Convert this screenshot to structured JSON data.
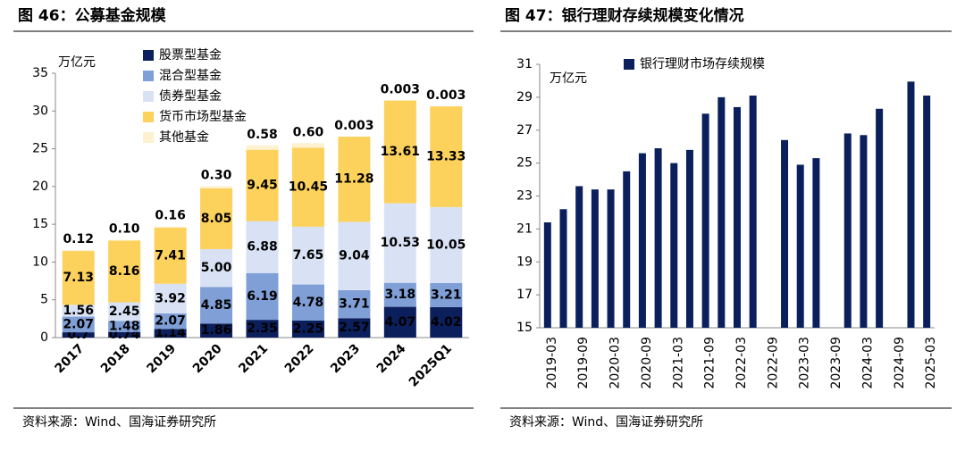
{
  "chart_data": [
    {
      "type": "bar",
      "stacked": true,
      "title": "图 46：公募基金规模",
      "unit": "万亿元",
      "source": "资料来源：Wind、国海证券研究所",
      "categories": [
        "2017",
        "2018",
        "2019",
        "2020",
        "2021",
        "2022",
        "2023",
        "2024",
        "2025Q1"
      ],
      "series": [
        {
          "name": "股票型基金",
          "color": "#0b1f5c",
          "values": [
            0.7,
            0.74,
            1.14,
            1.86,
            2.35,
            2.25,
            2.57,
            4.07,
            4.02
          ],
          "value_labels": [
            "0.7",
            "0.74",
            "1.14",
            "1.86",
            "2.35",
            "2.25",
            "2.57",
            "4.07",
            "4.02"
          ]
        },
        {
          "name": "混合型基金",
          "color": "#7f9fd6",
          "values": [
            2.07,
            1.48,
            2.07,
            4.85,
            6.19,
            4.78,
            3.71,
            3.18,
            3.21
          ],
          "value_labels": [
            "2.07",
            "1.48",
            "2.07",
            "4.85",
            "6.19",
            "4.78",
            "3.71",
            "3.18",
            "3.21"
          ]
        },
        {
          "name": "债券型基金",
          "color": "#d9e2f5",
          "values": [
            1.56,
            2.45,
            3.92,
            5.0,
            6.88,
            7.65,
            9.04,
            10.53,
            10.05
          ],
          "value_labels": [
            "1.56",
            "2.45",
            "3.92",
            "5.00",
            "6.88",
            "7.65",
            "9.04",
            "10.53",
            "10.05"
          ]
        },
        {
          "name": "货币市场型基金",
          "color": "#fcd15c",
          "values": [
            7.13,
            8.16,
            7.41,
            8.05,
            9.45,
            10.45,
            11.28,
            13.61,
            13.33
          ],
          "value_labels": [
            "7.13",
            "8.16",
            "7.41",
            "8.05",
            "9.45",
            "10.45",
            "11.28",
            "13.61",
            "13.33"
          ]
        },
        {
          "name": "其他基金",
          "color": "#fdf1cf",
          "values": [
            0.12,
            0.1,
            0.16,
            0.3,
            0.58,
            0.6,
            0.003,
            0.003,
            0.003
          ],
          "value_labels": [
            "0.12",
            "0.10",
            "0.16",
            "0.30",
            "0.58",
            "0.60",
            "0.003",
            "0.003",
            "0.003"
          ]
        }
      ],
      "ylim": [
        0,
        35
      ],
      "yticks": [
        0,
        5,
        10,
        15,
        20,
        25,
        30,
        35
      ],
      "grid": false,
      "legend": "top-left"
    },
    {
      "type": "bar",
      "stacked": false,
      "title": "图 47：银行理财存续规模变化情况",
      "unit": "万亿元",
      "source": "资料来源：Wind、国海证券研究所",
      "categories": [
        "2019-03",
        null,
        "2019-09",
        null,
        "2020-03",
        null,
        "2020-09",
        null,
        "2021-03",
        null,
        "2021-09",
        null,
        "2022-03",
        null,
        "2022-09",
        null,
        "2023-03",
        null,
        "2023-09",
        null,
        "2024-03",
        null,
        "2024-09",
        null,
        "2025-03"
      ],
      "series": [
        {
          "name": "银行理财市场存续规模",
          "color": "#0b1f5c",
          "values": [
            21.4,
            22.2,
            23.6,
            23.4,
            23.4,
            24.5,
            25.6,
            25.9,
            25.0,
            25.8,
            28.0,
            29.0,
            28.4,
            29.1,
            null,
            26.4,
            24.9,
            25.3,
            null,
            26.8,
            26.7,
            28.3,
            null,
            29.95,
            29.1
          ]
        }
      ],
      "ylim": [
        15,
        31
      ],
      "yticks": [
        15,
        17,
        19,
        21,
        23,
        25,
        27,
        29,
        31
      ],
      "grid": false,
      "legend": "top"
    }
  ]
}
